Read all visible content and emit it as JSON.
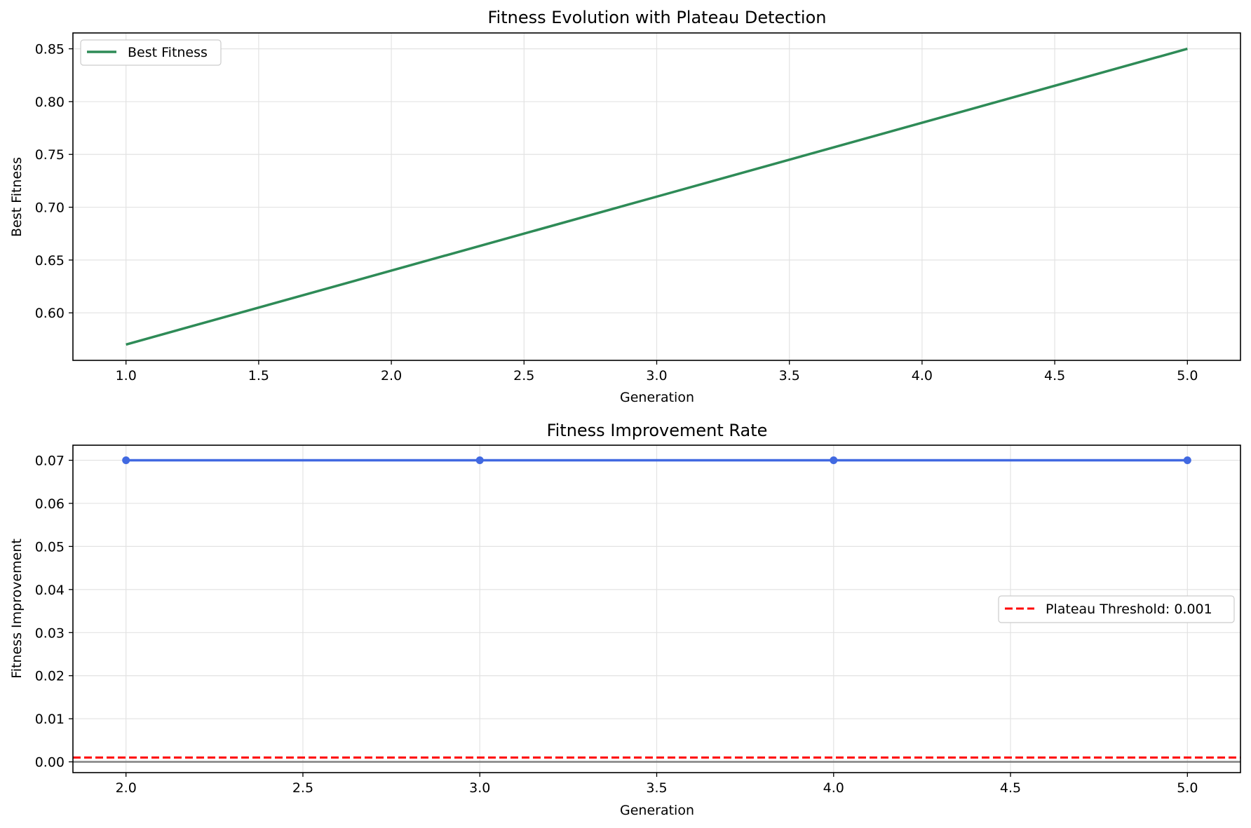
{
  "chart_data": [
    {
      "type": "line",
      "title": "Fitness Evolution with Plateau Detection",
      "xlabel": "Generation",
      "ylabel": "Best Fitness",
      "xlim": [
        0.8,
        5.2
      ],
      "ylim": [
        0.555,
        0.865
      ],
      "xticks": [
        1.0,
        1.5,
        2.0,
        2.5,
        3.0,
        3.5,
        4.0,
        4.5,
        5.0
      ],
      "xtick_labels": [
        "1.0",
        "1.5",
        "2.0",
        "2.5",
        "3.0",
        "3.5",
        "4.0",
        "4.5",
        "5.0"
      ],
      "yticks": [
        0.6,
        0.65,
        0.7,
        0.75,
        0.8,
        0.85
      ],
      "ytick_labels": [
        "0.60",
        "0.65",
        "0.70",
        "0.75",
        "0.80",
        "0.85"
      ],
      "grid": true,
      "legend_position": "upper-left",
      "series": [
        {
          "name": "Best Fitness",
          "color": "#2e8b57",
          "style": "solid",
          "markers": false,
          "x": [
            1,
            2,
            3,
            4,
            5
          ],
          "y": [
            0.57,
            0.64,
            0.71,
            0.78,
            0.85
          ]
        }
      ]
    },
    {
      "type": "line",
      "title": "Fitness Improvement Rate",
      "xlabel": "Generation",
      "ylabel": "Fitness Improvement",
      "xlim": [
        1.85,
        5.15
      ],
      "ylim": [
        -0.0025,
        0.0735
      ],
      "xticks": [
        2.0,
        2.5,
        3.0,
        3.5,
        4.0,
        4.5,
        5.0
      ],
      "xtick_labels": [
        "2.0",
        "2.5",
        "3.0",
        "3.5",
        "4.0",
        "4.5",
        "5.0"
      ],
      "yticks": [
        0.0,
        0.01,
        0.02,
        0.03,
        0.04,
        0.05,
        0.06,
        0.07
      ],
      "ytick_labels": [
        "0.00",
        "0.01",
        "0.02",
        "0.03",
        "0.04",
        "0.05",
        "0.06",
        "0.07"
      ],
      "grid": true,
      "legend_position": "center-right",
      "series": [
        {
          "name": "",
          "color": "#4169e1",
          "style": "solid",
          "markers": true,
          "x": [
            2,
            3,
            4,
            5
          ],
          "y": [
            0.07,
            0.07,
            0.07,
            0.07
          ]
        }
      ],
      "reference_lines": [
        {
          "name": "Plateau Threshold: 0.001",
          "y": 0.001,
          "color": "#ff0000",
          "style": "dashed"
        },
        {
          "name": "",
          "y": 0.0,
          "color": "#808080",
          "style": "solid"
        }
      ]
    }
  ]
}
